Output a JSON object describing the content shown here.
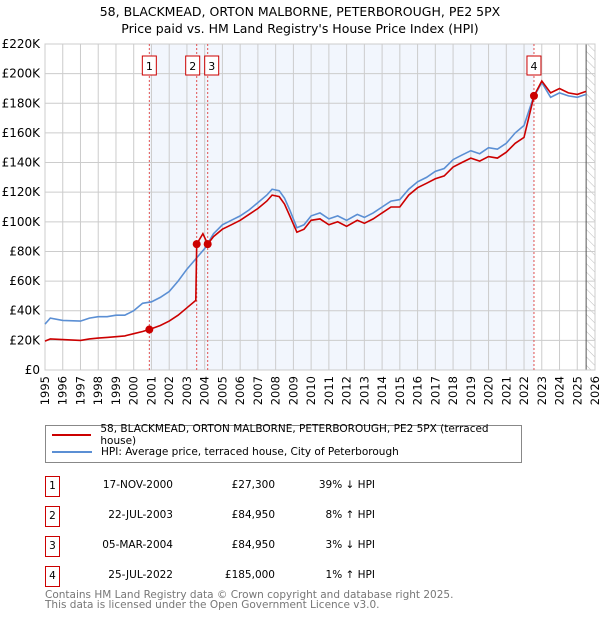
{
  "chart_data": {
    "type": "line",
    "title": "58, BLACKMEAD, ORTON MALBORNE, PETERBOROUGH, PE2 5PX",
    "subtitle": "Price paid vs. HM Land Registry's House Price Index (HPI)",
    "xlim": [
      1995,
      2026
    ],
    "ylim": [
      0,
      220000
    ],
    "x_ticks": [
      1995,
      1996,
      1997,
      1998,
      1999,
      2000,
      2001,
      2002,
      2003,
      2004,
      2005,
      2006,
      2007,
      2008,
      2009,
      2010,
      2011,
      2012,
      2013,
      2014,
      2015,
      2016,
      2017,
      2018,
      2019,
      2020,
      2021,
      2022,
      2023,
      2024,
      2025,
      2026
    ],
    "y_ticks": [
      {
        "v": 0,
        "l": "£0"
      },
      {
        "v": 20000,
        "l": "£20K"
      },
      {
        "v": 40000,
        "l": "£40K"
      },
      {
        "v": 60000,
        "l": "£60K"
      },
      {
        "v": 80000,
        "l": "£80K"
      },
      {
        "v": 100000,
        "l": "£100K"
      },
      {
        "v": 120000,
        "l": "£120K"
      },
      {
        "v": 140000,
        "l": "£140K"
      },
      {
        "v": 160000,
        "l": "£160K"
      },
      {
        "v": 180000,
        "l": "£180K"
      },
      {
        "v": 200000,
        "l": "£200K"
      },
      {
        "v": 220000,
        "l": "£220K"
      }
    ],
    "grid": true,
    "series": [
      {
        "name": "58, BLACKMEAD, ORTON MALBORNE, PETERBOROUGH, PE2 5PX (terraced house)",
        "color": "#cc0000",
        "points": [
          [
            1995,
            19500
          ],
          [
            1995.3,
            21000
          ],
          [
            1996,
            20500
          ],
          [
            1997,
            20000
          ],
          [
            1997.5,
            21000
          ],
          [
            1998,
            21500
          ],
          [
            1998.5,
            22000
          ],
          [
            1999,
            22500
          ],
          [
            1999.5,
            23000
          ],
          [
            2000,
            24500
          ],
          [
            2000.5,
            26000
          ],
          [
            2000.88,
            27300
          ],
          [
            2001.5,
            30000
          ],
          [
            2002,
            33000
          ],
          [
            2002.5,
            37000
          ],
          [
            2003,
            42000
          ],
          [
            2003.5,
            47000
          ],
          [
            2003.55,
            84950
          ],
          [
            2003.9,
            92000
          ],
          [
            2004.17,
            84950
          ],
          [
            2004.5,
            90000
          ],
          [
            2005,
            95000
          ],
          [
            2005.5,
            98000
          ],
          [
            2006,
            101000
          ],
          [
            2006.5,
            105000
          ],
          [
            2007,
            109000
          ],
          [
            2007.5,
            114000
          ],
          [
            2007.8,
            118000
          ],
          [
            2008.2,
            117000
          ],
          [
            2008.5,
            112000
          ],
          [
            2008.8,
            104000
          ],
          [
            2009.2,
            93000
          ],
          [
            2009.6,
            95000
          ],
          [
            2010,
            101000
          ],
          [
            2010.5,
            102000
          ],
          [
            2011,
            98000
          ],
          [
            2011.5,
            100000
          ],
          [
            2012,
            97000
          ],
          [
            2012.6,
            101000
          ],
          [
            2013,
            99000
          ],
          [
            2013.5,
            102000
          ],
          [
            2014,
            106000
          ],
          [
            2014.5,
            110000
          ],
          [
            2015,
            110000
          ],
          [
            2015.5,
            118000
          ],
          [
            2016,
            123000
          ],
          [
            2016.5,
            126000
          ],
          [
            2017,
            129000
          ],
          [
            2017.5,
            131000
          ],
          [
            2018,
            137000
          ],
          [
            2018.5,
            140000
          ],
          [
            2019,
            143000
          ],
          [
            2019.5,
            141000
          ],
          [
            2020,
            144000
          ],
          [
            2020.5,
            143000
          ],
          [
            2021,
            147000
          ],
          [
            2021.5,
            153000
          ],
          [
            2022,
            157000
          ],
          [
            2022.56,
            185000
          ],
          [
            2023,
            195000
          ],
          [
            2023.5,
            187000
          ],
          [
            2024,
            190000
          ],
          [
            2024.5,
            187000
          ],
          [
            2025,
            186000
          ],
          [
            2025.5,
            188000
          ]
        ]
      },
      {
        "name": "HPI: Average price, terraced house, City of Peterborough",
        "color": "#5b8fd4",
        "points": [
          [
            1995,
            31000
          ],
          [
            1995.3,
            35000
          ],
          [
            1996,
            33500
          ],
          [
            1997,
            33000
          ],
          [
            1997.5,
            35000
          ],
          [
            1998,
            36000
          ],
          [
            1998.5,
            36000
          ],
          [
            1999,
            37000
          ],
          [
            1999.5,
            37000
          ],
          [
            2000,
            40000
          ],
          [
            2000.5,
            45000
          ],
          [
            2001,
            46000
          ],
          [
            2001.5,
            49000
          ],
          [
            2002,
            53000
          ],
          [
            2002.5,
            60000
          ],
          [
            2003,
            68000
          ],
          [
            2003.5,
            75000
          ],
          [
            2004,
            82000
          ],
          [
            2004.5,
            92000
          ],
          [
            2005,
            98000
          ],
          [
            2005.5,
            101000
          ],
          [
            2006,
            104000
          ],
          [
            2006.5,
            108000
          ],
          [
            2007,
            113000
          ],
          [
            2007.5,
            118000
          ],
          [
            2007.8,
            122000
          ],
          [
            2008.2,
            121000
          ],
          [
            2008.5,
            116000
          ],
          [
            2008.8,
            108000
          ],
          [
            2009.2,
            96000
          ],
          [
            2009.6,
            98000
          ],
          [
            2010,
            104000
          ],
          [
            2010.5,
            106000
          ],
          [
            2011,
            102000
          ],
          [
            2011.5,
            104000
          ],
          [
            2012,
            101000
          ],
          [
            2012.6,
            105000
          ],
          [
            2013,
            103000
          ],
          [
            2013.5,
            106000
          ],
          [
            2014,
            110000
          ],
          [
            2014.5,
            114000
          ],
          [
            2015,
            115000
          ],
          [
            2015.5,
            122000
          ],
          [
            2016,
            127000
          ],
          [
            2016.5,
            130000
          ],
          [
            2017,
            134000
          ],
          [
            2017.5,
            136000
          ],
          [
            2018,
            142000
          ],
          [
            2018.5,
            145000
          ],
          [
            2019,
            148000
          ],
          [
            2019.5,
            146000
          ],
          [
            2020,
            150000
          ],
          [
            2020.5,
            149000
          ],
          [
            2021,
            153000
          ],
          [
            2021.5,
            160000
          ],
          [
            2022,
            165000
          ],
          [
            2022.5,
            183000
          ],
          [
            2023,
            194000
          ],
          [
            2023.5,
            184000
          ],
          [
            2024,
            187000
          ],
          [
            2024.5,
            185000
          ],
          [
            2025,
            184000
          ],
          [
            2025.5,
            186000
          ]
        ]
      }
    ],
    "sales": [
      {
        "n": "1",
        "x": 2000.88,
        "y": 27300,
        "date": "17-NOV-2000",
        "price": "£27,300",
        "hpi": "39% ↓ HPI"
      },
      {
        "n": "2",
        "x": 2003.55,
        "y": 84950,
        "date": "22-JUL-2003",
        "price": "£84,950",
        "hpi": "8% ↑ HPI"
      },
      {
        "n": "3",
        "x": 2004.17,
        "y": 84950,
        "date": "05-MAR-2004",
        "price": "£84,950",
        "hpi": "3% ↓ HPI"
      },
      {
        "n": "4",
        "x": 2022.56,
        "y": 185000,
        "date": "25-JUL-2022",
        "price": "£185,000",
        "hpi": "1% ↑ HPI"
      }
    ],
    "forecast_start": 2025.5
  },
  "legend": {
    "property": "58, BLACKMEAD, ORTON MALBORNE, PETERBOROUGH, PE2 5PX (terraced house)",
    "hpi": "HPI: Average price, terraced house, City of Peterborough"
  },
  "footer": {
    "line1": "Contains HM Land Registry data © Crown copyright and database right 2025.",
    "line2": "This data is licensed under the Open Government Licence v3.0."
  }
}
